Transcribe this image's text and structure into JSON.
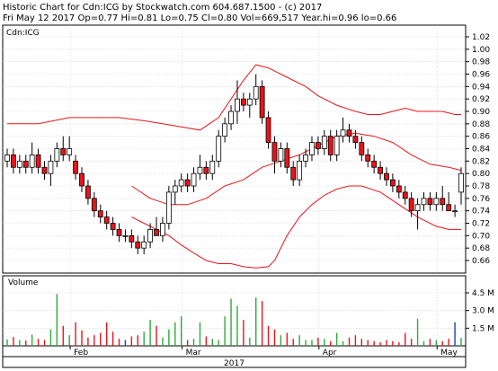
{
  "header": {
    "line1": "Historic Chart for Cdn:ICG by Stockwatch.com 604.687.1500 - (c) 2017",
    "line2": "Fri May 12 2017  Op=0.77  Hi=0.81  Lo=0.75  Cl=0.80  Vol=669,517  Year.hi=0.96  lo=0.66"
  },
  "price_panel": {
    "label": "Cdn:ICG"
  },
  "volume_panel": {
    "label": "Volume"
  },
  "x_axis": {
    "year_label": "2017"
  },
  "colors": {
    "grid": "#c8c8c8",
    "up_fill": "#ffffff",
    "down_fill": "#e8141b",
    "candle_outline": "#000000",
    "band": "#e8141b",
    "vol_up": "#2eaa3a",
    "vol_down": "#e8141b",
    "vol_flat": "#1f3fbf"
  },
  "chart_data": {
    "type": "candlestick",
    "title": "Cdn:ICG",
    "ylim": [
      0.64,
      1.03
    ],
    "yticks": [
      "1.02",
      "1.00",
      "0.98",
      "0.96",
      "0.94",
      "0.92",
      "0.90",
      "0.88",
      "0.86",
      "0.84",
      "0.82",
      "0.80",
      "0.78",
      "0.76",
      "0.74",
      "0.72",
      "0.70",
      "0.68",
      "0.66"
    ],
    "x_month_labels": [
      {
        "label": "Feb",
        "index": 11
      },
      {
        "label": "Mar",
        "index": 29
      },
      {
        "label": "Apr",
        "index": 51
      },
      {
        "label": "May",
        "index": 70
      }
    ],
    "candles": [
      [
        0.82,
        0.84,
        0.81,
        0.83
      ],
      [
        0.83,
        0.84,
        0.8,
        0.81
      ],
      [
        0.81,
        0.83,
        0.8,
        0.82
      ],
      [
        0.82,
        0.83,
        0.8,
        0.81
      ],
      [
        0.81,
        0.85,
        0.8,
        0.83
      ],
      [
        0.83,
        0.84,
        0.8,
        0.81
      ],
      [
        0.81,
        0.82,
        0.79,
        0.8
      ],
      [
        0.8,
        0.83,
        0.78,
        0.82
      ],
      [
        0.82,
        0.85,
        0.81,
        0.84
      ],
      [
        0.84,
        0.86,
        0.82,
        0.83
      ],
      [
        0.83,
        0.86,
        0.82,
        0.84
      ],
      [
        0.82,
        0.83,
        0.79,
        0.8
      ],
      [
        0.8,
        0.81,
        0.77,
        0.78
      ],
      [
        0.78,
        0.79,
        0.75,
        0.76
      ],
      [
        0.76,
        0.77,
        0.73,
        0.74
      ],
      [
        0.74,
        0.75,
        0.72,
        0.73
      ],
      [
        0.73,
        0.74,
        0.71,
        0.72
      ],
      [
        0.72,
        0.73,
        0.7,
        0.71
      ],
      [
        0.71,
        0.72,
        0.69,
        0.7
      ],
      [
        0.7,
        0.71,
        0.69,
        0.7
      ],
      [
        0.7,
        0.71,
        0.68,
        0.69
      ],
      [
        0.69,
        0.7,
        0.67,
        0.68
      ],
      [
        0.68,
        0.7,
        0.67,
        0.69
      ],
      [
        0.69,
        0.72,
        0.68,
        0.71
      ],
      [
        0.71,
        0.73,
        0.7,
        0.7
      ],
      [
        0.7,
        0.73,
        0.69,
        0.72
      ],
      [
        0.72,
        0.78,
        0.71,
        0.77
      ],
      [
        0.77,
        0.79,
        0.75,
        0.78
      ],
      [
        0.78,
        0.8,
        0.77,
        0.79
      ],
      [
        0.79,
        0.8,
        0.77,
        0.78
      ],
      [
        0.78,
        0.81,
        0.77,
        0.8
      ],
      [
        0.8,
        0.83,
        0.79,
        0.81
      ],
      [
        0.81,
        0.82,
        0.79,
        0.8
      ],
      [
        0.8,
        0.83,
        0.79,
        0.82
      ],
      [
        0.82,
        0.87,
        0.81,
        0.86
      ],
      [
        0.86,
        0.89,
        0.85,
        0.88
      ],
      [
        0.88,
        0.91,
        0.87,
        0.9
      ],
      [
        0.9,
        0.95,
        0.88,
        0.92
      ],
      [
        0.92,
        0.93,
        0.9,
        0.91
      ],
      [
        0.91,
        0.93,
        0.89,
        0.92
      ],
      [
        0.92,
        0.96,
        0.91,
        0.94
      ],
      [
        0.94,
        0.95,
        0.88,
        0.89
      ],
      [
        0.89,
        0.9,
        0.84,
        0.85
      ],
      [
        0.85,
        0.86,
        0.8,
        0.82
      ],
      [
        0.82,
        0.85,
        0.81,
        0.84
      ],
      [
        0.84,
        0.85,
        0.8,
        0.81
      ],
      [
        0.81,
        0.82,
        0.78,
        0.79
      ],
      [
        0.79,
        0.83,
        0.78,
        0.82
      ],
      [
        0.82,
        0.84,
        0.81,
        0.83
      ],
      [
        0.83,
        0.86,
        0.82,
        0.85
      ],
      [
        0.85,
        0.86,
        0.83,
        0.84
      ],
      [
        0.84,
        0.87,
        0.83,
        0.86
      ],
      [
        0.86,
        0.87,
        0.82,
        0.83
      ],
      [
        0.83,
        0.87,
        0.82,
        0.86
      ],
      [
        0.86,
        0.89,
        0.85,
        0.87
      ],
      [
        0.87,
        0.88,
        0.85,
        0.86
      ],
      [
        0.86,
        0.87,
        0.84,
        0.85
      ],
      [
        0.85,
        0.86,
        0.82,
        0.83
      ],
      [
        0.83,
        0.84,
        0.81,
        0.82
      ],
      [
        0.82,
        0.83,
        0.8,
        0.81
      ],
      [
        0.81,
        0.82,
        0.79,
        0.8
      ],
      [
        0.8,
        0.81,
        0.78,
        0.79
      ],
      [
        0.79,
        0.8,
        0.77,
        0.78
      ],
      [
        0.78,
        0.79,
        0.76,
        0.77
      ],
      [
        0.77,
        0.78,
        0.75,
        0.76
      ],
      [
        0.76,
        0.77,
        0.73,
        0.74
      ],
      [
        0.74,
        0.76,
        0.71,
        0.75
      ],
      [
        0.75,
        0.77,
        0.74,
        0.76
      ],
      [
        0.76,
        0.77,
        0.74,
        0.75
      ],
      [
        0.75,
        0.77,
        0.74,
        0.76
      ],
      [
        0.76,
        0.78,
        0.74,
        0.75
      ],
      [
        0.75,
        0.77,
        0.74,
        0.74
      ],
      [
        0.74,
        0.75,
        0.73,
        0.74
      ],
      [
        0.77,
        0.81,
        0.75,
        0.8
      ]
    ],
    "band_upper": [
      [
        0,
        0.88
      ],
      [
        5,
        0.88
      ],
      [
        10,
        0.89
      ],
      [
        14,
        0.89
      ],
      [
        18,
        0.89
      ],
      [
        22,
        0.885
      ],
      [
        25,
        0.88
      ],
      [
        28,
        0.875
      ],
      [
        31,
        0.87
      ],
      [
        34,
        0.89
      ],
      [
        36,
        0.92
      ],
      [
        38,
        0.95
      ],
      [
        40,
        0.975
      ],
      [
        42,
        0.97
      ],
      [
        45,
        0.955
      ],
      [
        48,
        0.94
      ],
      [
        50,
        0.925
      ],
      [
        53,
        0.91
      ],
      [
        56,
        0.9
      ],
      [
        58,
        0.895
      ],
      [
        60,
        0.895
      ],
      [
        62,
        0.9
      ],
      [
        64,
        0.905
      ],
      [
        66,
        0.9
      ],
      [
        68,
        0.9
      ],
      [
        70,
        0.9
      ],
      [
        72,
        0.895
      ],
      [
        73,
        0.895
      ]
    ],
    "band_middle": [
      [
        20,
        0.78
      ],
      [
        23,
        0.76
      ],
      [
        26,
        0.75
      ],
      [
        29,
        0.75
      ],
      [
        32,
        0.76
      ],
      [
        35,
        0.78
      ],
      [
        38,
        0.79
      ],
      [
        41,
        0.81
      ],
      [
        44,
        0.82
      ],
      [
        47,
        0.83
      ],
      [
        50,
        0.845
      ],
      [
        53,
        0.86
      ],
      [
        56,
        0.865
      ],
      [
        59,
        0.86
      ],
      [
        62,
        0.85
      ],
      [
        65,
        0.83
      ],
      [
        68,
        0.815
      ],
      [
        71,
        0.81
      ],
      [
        73,
        0.805
      ]
    ],
    "band_lower": [
      [
        20,
        0.73
      ],
      [
        23,
        0.715
      ],
      [
        26,
        0.7
      ],
      [
        28,
        0.685
      ],
      [
        30,
        0.672
      ],
      [
        32,
        0.66
      ],
      [
        34,
        0.655
      ],
      [
        36,
        0.655
      ],
      [
        38,
        0.65
      ],
      [
        40,
        0.648
      ],
      [
        42,
        0.65
      ],
      [
        43,
        0.66
      ],
      [
        45,
        0.7
      ],
      [
        47,
        0.73
      ],
      [
        49,
        0.75
      ],
      [
        51,
        0.765
      ],
      [
        53,
        0.775
      ],
      [
        55,
        0.78
      ],
      [
        57,
        0.78
      ],
      [
        60,
        0.77
      ],
      [
        63,
        0.75
      ],
      [
        66,
        0.73
      ],
      [
        69,
        0.715
      ],
      [
        71,
        0.71
      ],
      [
        73,
        0.71
      ]
    ],
    "volume_ticks": [
      "4.5 M",
      "3.0 M",
      "1.5 M"
    ],
    "volume_max": 5.0,
    "volumes": [
      0.55,
      0.75,
      0.5,
      0.45,
      0.95,
      0.6,
      0.5,
      1.4,
      4.4,
      1.7,
      0.9,
      2.0,
      1.3,
      0.7,
      0.9,
      1.1,
      2.0,
      1.2,
      0.6,
      0.5,
      0.8,
      0.9,
      1.2,
      2.2,
      1.7,
      0.7,
      1.4,
      2.0,
      2.5,
      0.5,
      0.6,
      2.0,
      0.8,
      0.6,
      0.5,
      2.5,
      4.0,
      3.4,
      2.2,
      0.7,
      4.1,
      3.8,
      1.7,
      1.4,
      0.9,
      1.1,
      0.6,
      0.9,
      0.5,
      0.5,
      0.7,
      0.6,
      0.4,
      1.1,
      0.4,
      0.7,
      0.9,
      0.6,
      0.5,
      0.4,
      0.3,
      0.5,
      0.4,
      0.3,
      1.1,
      0.6,
      2.3,
      0.4,
      0.6,
      0.5,
      0.4,
      0.6,
      2.0,
      0.67
    ]
  }
}
